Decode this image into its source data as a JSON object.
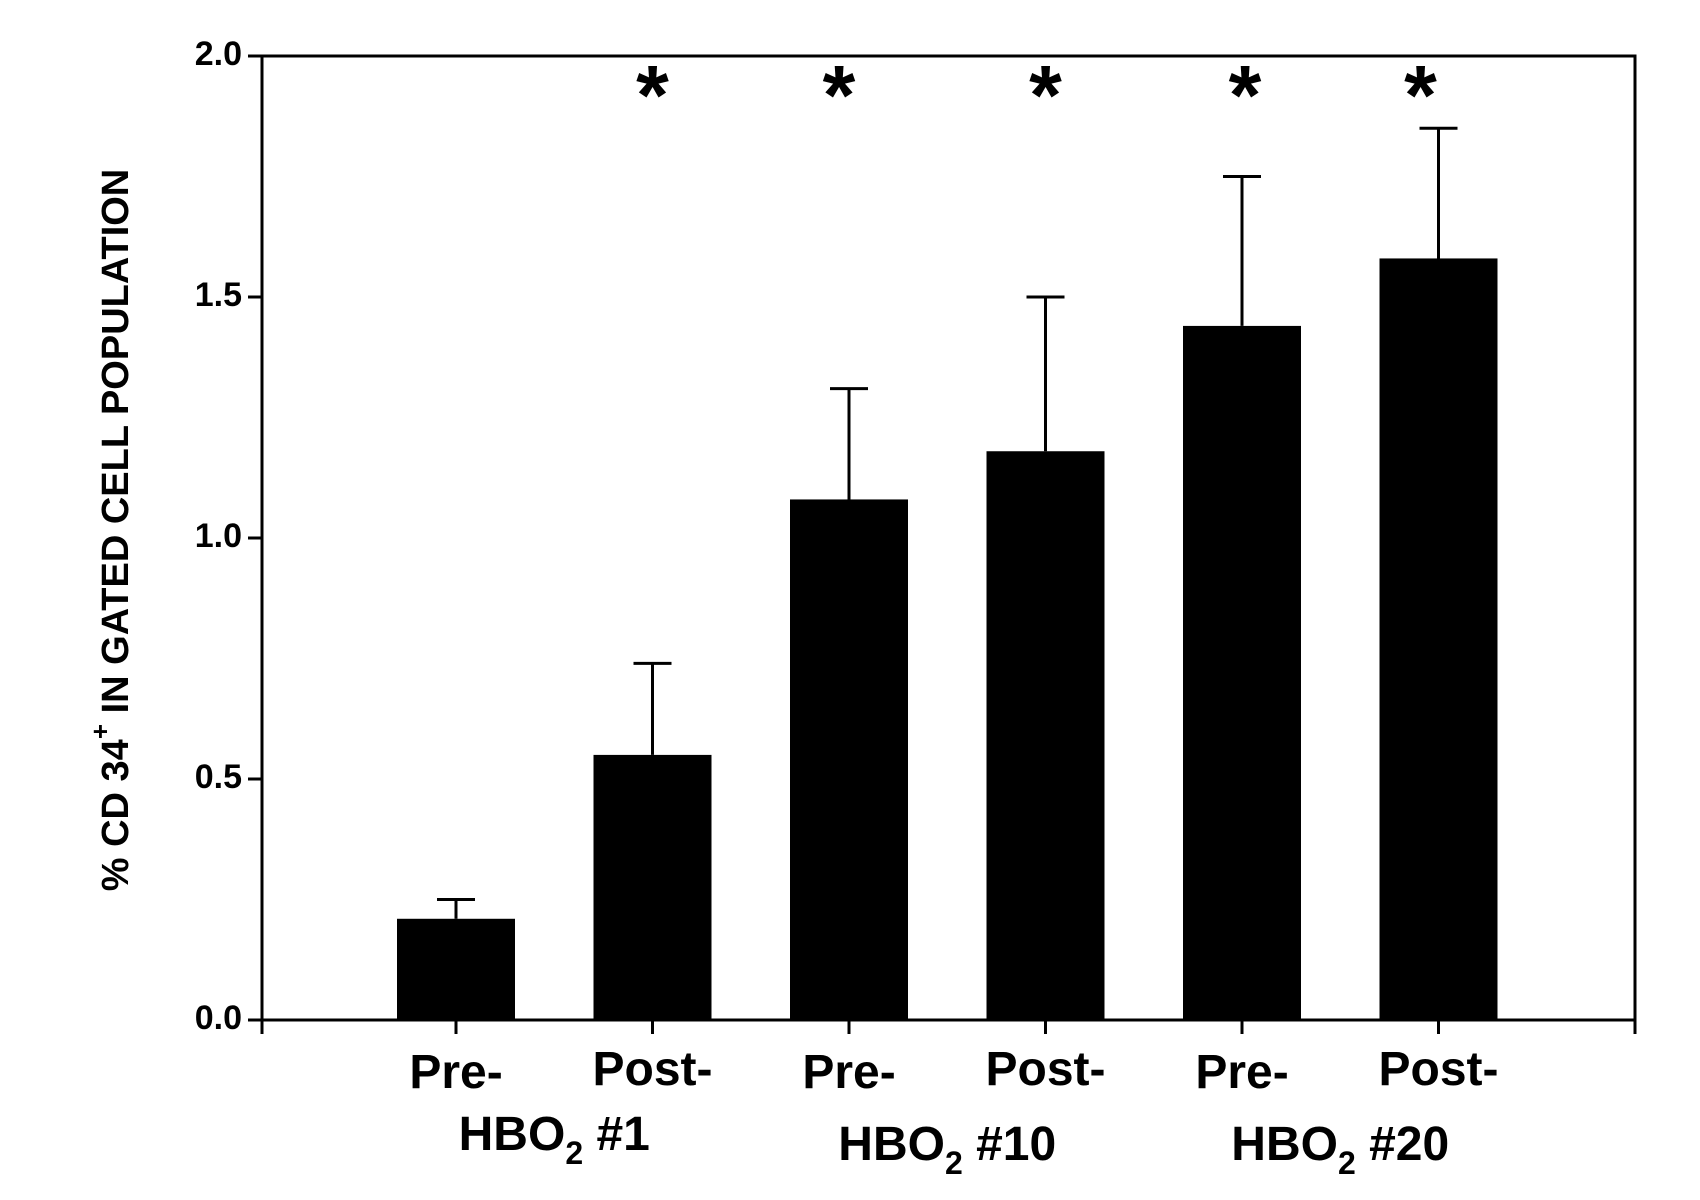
{
  "chart_data": {
    "type": "bar",
    "ylabel": {
      "prefix": "% CD 34",
      "superscript": "+",
      "suffix": " IN GATED CELL POPULATION"
    },
    "ylim": [
      0,
      2.0
    ],
    "yticks": [
      "0.0",
      "0.5",
      "1.0",
      "1.5",
      "2.0"
    ],
    "categories": [
      "Pre-",
      "Post-",
      "Pre-",
      "Post-",
      "Pre-",
      "Post-"
    ],
    "values": [
      0.21,
      0.55,
      1.08,
      1.18,
      1.44,
      1.58
    ],
    "error_upper": [
      0.25,
      0.74,
      1.31,
      1.5,
      1.75,
      1.85
    ],
    "significance": [
      "",
      "*",
      "*",
      "*",
      "*",
      "*"
    ],
    "groups": [
      {
        "base": "HBO",
        "subscript": "2",
        "suffix": " #1"
      },
      {
        "base": "HBO",
        "subscript": "2",
        "suffix": " #10"
      },
      {
        "base": "HBO",
        "subscript": "2",
        "suffix": " #20"
      }
    ],
    "bar_color": "#000000",
    "grid": false
  }
}
